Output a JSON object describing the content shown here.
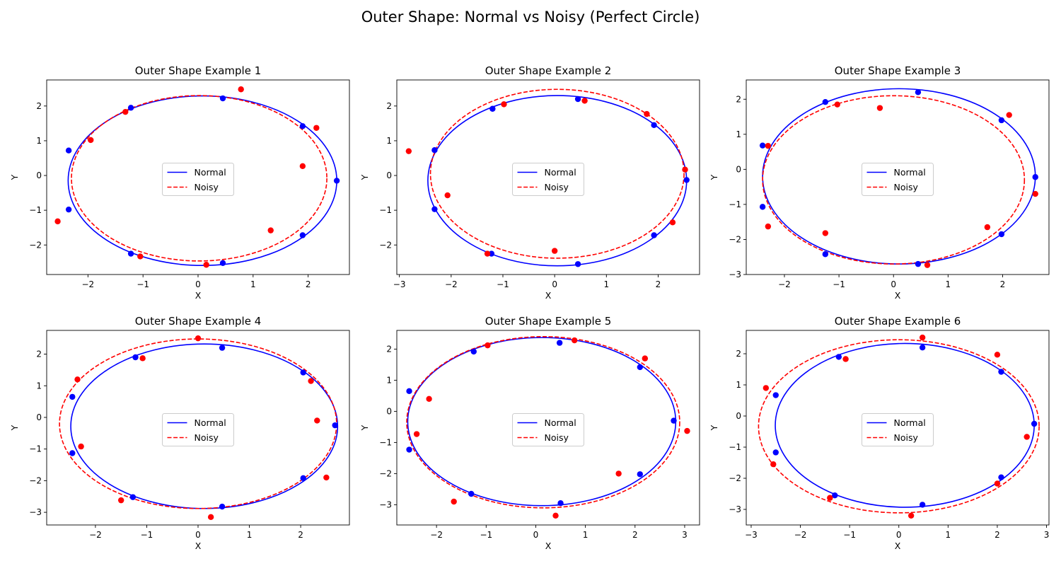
{
  "figure": {
    "title": "Outer Shape: Normal vs Noisy (Perfect Circle)"
  },
  "colors": {
    "normal": "#0000ff",
    "noisy": "#ff0000"
  },
  "chart_data": [
    {
      "type": "scatter",
      "title": "Outer Shape Example 1",
      "xlabel": "X",
      "ylabel": "Y",
      "xlim": [
        -2.75,
        2.75
      ],
      "ylim": [
        -2.85,
        2.75
      ],
      "xticks": [
        -2,
        -1,
        0,
        1,
        2
      ],
      "yticks": [
        -2,
        -1,
        0,
        1,
        2
      ],
      "grid": false,
      "legend": "center",
      "ellipses": [
        {
          "name": "Normal",
          "style": "solid",
          "color": "#0000ff",
          "cx": 0.08,
          "cy": -0.15,
          "rx": 2.44,
          "ry": 2.44
        },
        {
          "name": "Noisy",
          "style": "dashed",
          "color": "#ff0000",
          "cx": 0.02,
          "cy": -0.08,
          "rx": 2.32,
          "ry": 2.38
        }
      ],
      "series": [
        {
          "name": "Normal",
          "color": "#0000ff",
          "points": [
            [
              0.45,
              2.22
            ],
            [
              1.9,
              1.42
            ],
            [
              2.52,
              -0.15
            ],
            [
              1.9,
              -1.72
            ],
            [
              0.45,
              -2.52
            ],
            [
              -1.22,
              -2.25
            ],
            [
              -2.35,
              -0.98
            ],
            [
              -2.35,
              0.72
            ],
            [
              -1.22,
              1.95
            ]
          ]
        },
        {
          "name": "Noisy",
          "color": "#ff0000",
          "points": [
            [
              0.78,
              2.48
            ],
            [
              2.15,
              1.37
            ],
            [
              1.9,
              0.27
            ],
            [
              1.32,
              -1.58
            ],
            [
              0.15,
              -2.57
            ],
            [
              -1.05,
              -2.33
            ],
            [
              -2.55,
              -1.32
            ],
            [
              -1.95,
              1.02
            ],
            [
              -1.32,
              1.83
            ]
          ]
        }
      ]
    },
    {
      "type": "scatter",
      "title": "Outer Shape Example 2",
      "xlabel": "X",
      "ylabel": "Y",
      "xlim": [
        -3.05,
        2.8
      ],
      "ylim": [
        -2.85,
        2.75
      ],
      "xticks": [
        -3,
        -2,
        -1,
        0,
        1,
        2
      ],
      "yticks": [
        -2,
        -1,
        0,
        1,
        2
      ],
      "grid": false,
      "legend": "center",
      "ellipses": [
        {
          "name": "Normal",
          "style": "solid",
          "color": "#0000ff",
          "cx": 0.05,
          "cy": -0.15,
          "rx": 2.5,
          "ry": 2.45
        },
        {
          "name": "Noisy",
          "style": "dashed",
          "color": "#ff0000",
          "cx": 0.05,
          "cy": 0.05,
          "rx": 2.45,
          "ry": 2.43
        }
      ],
      "series": [
        {
          "name": "Normal",
          "color": "#0000ff",
          "points": [
            [
              0.45,
              2.2
            ],
            [
              1.92,
              1.45
            ],
            [
              2.55,
              -0.13
            ],
            [
              1.92,
              -1.72
            ],
            [
              0.45,
              -2.55
            ],
            [
              -1.22,
              -2.25
            ],
            [
              -2.32,
              -0.97
            ],
            [
              -2.32,
              0.73
            ],
            [
              -1.2,
              1.92
            ]
          ]
        },
        {
          "name": "Noisy",
          "color": "#ff0000",
          "points": [
            [
              0.58,
              2.15
            ],
            [
              1.78,
              1.77
            ],
            [
              2.52,
              0.17
            ],
            [
              2.28,
              -1.35
            ],
            [
              0.0,
              -2.17
            ],
            [
              -1.3,
              -2.25
            ],
            [
              -2.07,
              -0.57
            ],
            [
              -2.82,
              0.7
            ],
            [
              -0.98,
              2.05
            ]
          ]
        }
      ]
    },
    {
      "type": "scatter",
      "title": "Outer Shape Example 3",
      "xlabel": "X",
      "ylabel": "Y",
      "xlim": [
        -2.7,
        2.85
      ],
      "ylim": [
        -3.0,
        2.55
      ],
      "xticks": [
        -2,
        -1,
        0,
        1,
        2
      ],
      "yticks": [
        -3,
        -2,
        -1,
        0,
        1,
        2
      ],
      "grid": false,
      "legend": "center",
      "ellipses": [
        {
          "name": "Normal",
          "style": "solid",
          "color": "#0000ff",
          "cx": 0.1,
          "cy": -0.2,
          "rx": 2.5,
          "ry": 2.5
        },
        {
          "name": "Noisy",
          "style": "dashed",
          "color": "#ff0000",
          "cx": 0.0,
          "cy": -0.3,
          "rx": 2.4,
          "ry": 2.4
        }
      ],
      "series": [
        {
          "name": "Normal",
          "color": "#0000ff",
          "points": [
            [
              0.45,
              2.2
            ],
            [
              1.98,
              1.4
            ],
            [
              2.6,
              -0.22
            ],
            [
              1.98,
              -1.85
            ],
            [
              0.45,
              -2.7
            ],
            [
              -1.25,
              -2.42
            ],
            [
              -2.4,
              -1.07
            ],
            [
              -2.4,
              0.68
            ],
            [
              -1.25,
              1.92
            ]
          ]
        },
        {
          "name": "Noisy",
          "color": "#ff0000",
          "points": [
            [
              -0.25,
              1.75
            ],
            [
              2.12,
              1.55
            ],
            [
              2.6,
              -0.7
            ],
            [
              1.72,
              -1.65
            ],
            [
              0.62,
              -2.73
            ],
            [
              -1.25,
              -1.82
            ],
            [
              -2.3,
              -1.63
            ],
            [
              -2.3,
              0.67
            ],
            [
              -1.03,
              1.85
            ]
          ]
        }
      ]
    },
    {
      "type": "scatter",
      "title": "Outer Shape Example 4",
      "xlabel": "X",
      "ylabel": "Y",
      "xlim": [
        -2.95,
        2.95
      ],
      "ylim": [
        -3.4,
        2.75
      ],
      "xticks": [
        -2,
        -1,
        0,
        1,
        2
      ],
      "yticks": [
        -3,
        -2,
        -1,
        0,
        1,
        2
      ],
      "grid": false,
      "legend": "center",
      "ellipses": [
        {
          "name": "Normal",
          "style": "solid",
          "color": "#0000ff",
          "cx": 0.12,
          "cy": -0.28,
          "rx": 2.6,
          "ry": 2.6
        },
        {
          "name": "Noisy",
          "style": "dashed",
          "color": "#ff0000",
          "cx": 0.0,
          "cy": -0.2,
          "rx": 2.7,
          "ry": 2.68
        }
      ],
      "series": [
        {
          "name": "Normal",
          "color": "#0000ff",
          "points": [
            [
              0.47,
              2.2
            ],
            [
              2.05,
              1.42
            ],
            [
              2.67,
              -0.25
            ],
            [
              2.05,
              -1.92
            ],
            [
              0.47,
              -2.82
            ],
            [
              -1.27,
              -2.52
            ],
            [
              -2.45,
              -1.13
            ],
            [
              -2.45,
              0.65
            ],
            [
              -1.22,
              1.9
            ]
          ]
        },
        {
          "name": "Noisy",
          "color": "#ff0000",
          "points": [
            [
              0.0,
              2.5
            ],
            [
              2.2,
              1.15
            ],
            [
              2.32,
              -0.1
            ],
            [
              2.5,
              -1.9
            ],
            [
              0.25,
              -3.15
            ],
            [
              -1.5,
              -2.62
            ],
            [
              -2.28,
              -0.92
            ],
            [
              -2.35,
              1.2
            ],
            [
              -1.08,
              1.87
            ]
          ]
        }
      ]
    },
    {
      "type": "scatter",
      "title": "Outer Shape Example 5",
      "xlabel": "X",
      "ylabel": "Y",
      "xlim": [
        -2.8,
        3.3
      ],
      "ylim": [
        -3.65,
        2.6
      ],
      "xticks": [
        -2,
        -1,
        0,
        1,
        2,
        3
      ],
      "yticks": [
        -3,
        -2,
        -1,
        0,
        1,
        2
      ],
      "grid": false,
      "legend": "center",
      "ellipses": [
        {
          "name": "Normal",
          "style": "solid",
          "color": "#0000ff",
          "cx": 0.12,
          "cy": -0.33,
          "rx": 2.7,
          "ry": 2.7
        },
        {
          "name": "Noisy",
          "style": "dashed",
          "color": "#ff0000",
          "cx": 0.15,
          "cy": -0.35,
          "rx": 2.75,
          "ry": 2.75
        }
      ],
      "series": [
        {
          "name": "Normal",
          "color": "#0000ff",
          "points": [
            [
              0.48,
              2.2
            ],
            [
              2.1,
              1.42
            ],
            [
              2.78,
              -0.3
            ],
            [
              2.1,
              -2.02
            ],
            [
              0.5,
              -2.95
            ],
            [
              -1.3,
              -2.65
            ],
            [
              -2.55,
              -1.23
            ],
            [
              -2.55,
              0.65
            ],
            [
              -1.25,
              1.92
            ]
          ]
        },
        {
          "name": "Noisy",
          "color": "#ff0000",
          "points": [
            [
              0.78,
              2.28
            ],
            [
              2.2,
              1.7
            ],
            [
              3.05,
              -0.63
            ],
            [
              1.67,
              -2.0
            ],
            [
              0.4,
              -3.35
            ],
            [
              -1.65,
              -2.9
            ],
            [
              -2.4,
              -0.73
            ],
            [
              -2.15,
              0.4
            ],
            [
              -0.97,
              2.12
            ]
          ]
        }
      ]
    },
    {
      "type": "scatter",
      "title": "Outer Shape Example 6",
      "xlabel": "X",
      "ylabel": "Y",
      "xlim": [
        -3.1,
        3.05
      ],
      "ylim": [
        -3.5,
        2.75
      ],
      "xticks": [
        -3,
        -2,
        -1,
        0,
        1,
        2,
        3
      ],
      "yticks": [
        -3,
        -2,
        -1,
        0,
        1,
        2
      ],
      "grid": false,
      "legend": "center",
      "ellipses": [
        {
          "name": "Normal",
          "style": "solid",
          "color": "#0000ff",
          "cx": 0.12,
          "cy": -0.3,
          "rx": 2.63,
          "ry": 2.63
        },
        {
          "name": "Noisy",
          "style": "dashed",
          "color": "#ff0000",
          "cx": 0.0,
          "cy": -0.33,
          "rx": 2.85,
          "ry": 2.78
        }
      ],
      "series": [
        {
          "name": "Normal",
          "color": "#0000ff",
          "points": [
            [
              0.48,
              2.2
            ],
            [
              2.08,
              1.42
            ],
            [
              2.75,
              -0.25
            ],
            [
              2.08,
              -1.97
            ],
            [
              0.48,
              -2.85
            ],
            [
              -1.3,
              -2.55
            ],
            [
              -2.5,
              -1.17
            ],
            [
              -2.5,
              0.67
            ],
            [
              -1.22,
              1.9
            ]
          ]
        },
        {
          "name": "Noisy",
          "color": "#ff0000",
          "points": [
            [
              0.48,
              2.52
            ],
            [
              2.0,
              1.97
            ],
            [
              2.6,
              -0.67
            ],
            [
              2.0,
              -2.17
            ],
            [
              0.25,
              -3.2
            ],
            [
              -1.4,
              -2.63
            ],
            [
              -2.55,
              -1.55
            ],
            [
              -2.7,
              0.9
            ],
            [
              -1.08,
              1.83
            ]
          ]
        }
      ]
    }
  ]
}
